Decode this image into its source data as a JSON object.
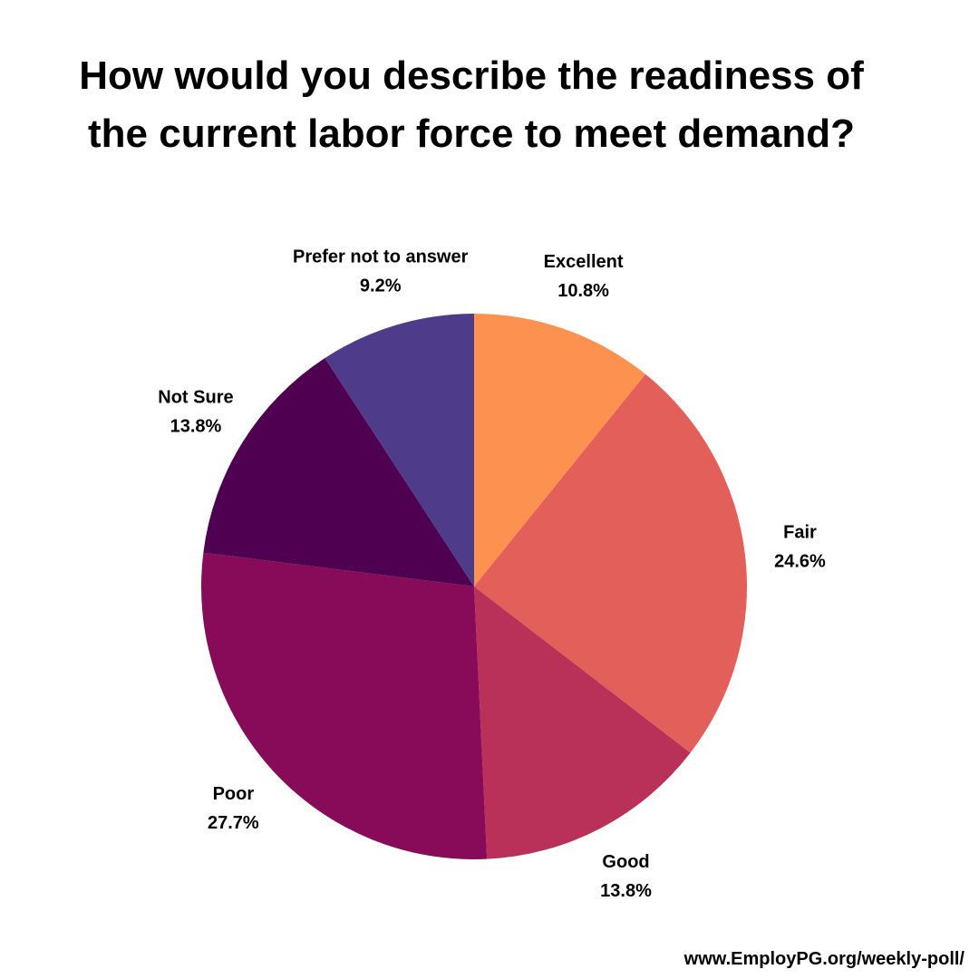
{
  "chart_data": {
    "type": "pie",
    "title": "How would you describe the readiness of the current labor force to meet demand?",
    "categories": [
      "Excellent",
      "Fair",
      "Good",
      "Poor",
      "Not Sure",
      "Prefer not to answer"
    ],
    "values": [
      10.8,
      24.6,
      13.8,
      27.7,
      13.8,
      9.2
    ],
    "value_labels": [
      "10.8%",
      "24.6%",
      "13.8%",
      "27.7%",
      "13.8%",
      "9.2%"
    ],
    "colors": [
      "#fd9150",
      "#e35f59",
      "#b93059",
      "#870b59",
      "#4f0050",
      "#4e3c8a"
    ],
    "footer": "www.EmployPG.org/weekly-poll/"
  }
}
